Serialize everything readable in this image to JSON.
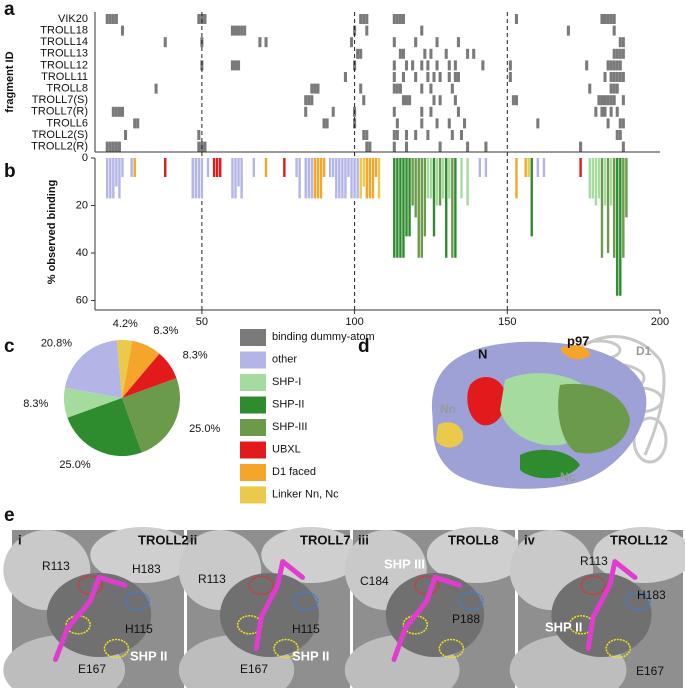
{
  "chart_data": [
    {
      "type": "raster",
      "label": "a",
      "ylabel": "fragment ID",
      "xlim": [
        15,
        200
      ],
      "reference_lines": [
        50,
        100,
        150
      ],
      "color": "#7a7a7a",
      "legend_name": "binding dummy-atom",
      "rows": [
        {
          "name": "VIK20",
          "residues": [
            19,
            20,
            21,
            22,
            49,
            50,
            51,
            102,
            103,
            104,
            113,
            114,
            115,
            116,
            153,
            181,
            182,
            183,
            184,
            185
          ]
        },
        {
          "name": "TROLL18",
          "residues": [
            24,
            60,
            61,
            62,
            63,
            64,
            100,
            104,
            122,
            170,
            185
          ]
        },
        {
          "name": "TROLL14",
          "residues": [
            38,
            50,
            69,
            71,
            99,
            113,
            120,
            127,
            134,
            187,
            188
          ]
        },
        {
          "name": "TROLL13",
          "residues": [
            101,
            102,
            115,
            116,
            123,
            125,
            130,
            137,
            139,
            185,
            186,
            187,
            188
          ]
        },
        {
          "name": "TROLL12",
          "residues": [
            50,
            60,
            61,
            62,
            100,
            113,
            117,
            119,
            122,
            124,
            127,
            131,
            133,
            142,
            151,
            176,
            183,
            184,
            185,
            186,
            187
          ]
        },
        {
          "name": "TROLL11",
          "residues": [
            97,
            113,
            116,
            120,
            124,
            126,
            128,
            131,
            133,
            134,
            151,
            182,
            184,
            185,
            186,
            187,
            188
          ]
        },
        {
          "name": "TROLL8",
          "residues": [
            35,
            86,
            87,
            88,
            102,
            113,
            114,
            115,
            122,
            125,
            132,
            177,
            184,
            185,
            186
          ]
        },
        {
          "name": "TROLL7(S)",
          "residues": [
            84,
            85,
            86,
            103,
            116,
            117,
            118,
            126,
            128,
            133,
            152,
            153,
            180,
            181,
            182,
            183,
            184,
            185,
            188
          ]
        },
        {
          "name": "TROLL7(R)",
          "residues": [
            21,
            22,
            23,
            24,
            84,
            93,
            100,
            113,
            122,
            125,
            134,
            179,
            181,
            182,
            184,
            186
          ]
        },
        {
          "name": "TROLL6",
          "residues": [
            28,
            29,
            90,
            91,
            100,
            114,
            122,
            127,
            131,
            136,
            160,
            183,
            187,
            188
          ]
        },
        {
          "name": "TROLL2(S)",
          "residues": [
            25,
            49,
            103,
            104,
            113,
            114,
            117,
            120,
            124,
            132,
            135,
            186,
            187
          ]
        },
        {
          "name": "TROLL2(R)",
          "residues": [
            19,
            20,
            21,
            22,
            23,
            49,
            50,
            51,
            104,
            105,
            113,
            117,
            128,
            137,
            143,
            174,
            188
          ]
        }
      ]
    },
    {
      "type": "bar",
      "label": "b",
      "ylabel": "% observed binding",
      "xlim": [
        15,
        200
      ],
      "xticks": [
        50,
        100,
        150,
        200
      ],
      "ylim": [
        0,
        64
      ],
      "yticks": [
        0,
        20,
        40,
        60
      ],
      "y_inverted": true,
      "series": [
        {
          "name": "other",
          "color": "#b3b5e6",
          "x": [
            19,
            20,
            21,
            22,
            23,
            24,
            27,
            47,
            48,
            49,
            50,
            52,
            60,
            61,
            62,
            63,
            67,
            81,
            82,
            84,
            85,
            86,
            90,
            92,
            93,
            94,
            95,
            96,
            97,
            98,
            99,
            100,
            101,
            141,
            143,
            160,
            162
          ],
          "values": [
            17,
            17,
            17,
            12,
            17,
            8,
            8,
            17,
            17,
            17,
            17,
            8,
            17,
            17,
            12,
            17,
            8,
            8,
            17,
            17,
            17,
            17,
            8,
            8,
            8,
            17,
            17,
            17,
            17,
            8,
            17,
            17,
            17,
            8,
            8,
            8,
            8
          ]
        },
        {
          "name": "SHP-I",
          "color": "#a6dba0",
          "x": [
            124,
            125,
            127,
            129,
            131,
            135,
            137,
            177,
            178,
            179,
            180,
            182,
            184
          ],
          "values": [
            17,
            17,
            20,
            17,
            17,
            17,
            20,
            17,
            17,
            20,
            17,
            20,
            20
          ]
        },
        {
          "name": "SHP-II",
          "color": "#2e8b2e",
          "x": [
            113,
            114,
            115,
            116,
            117,
            118,
            126,
            130,
            133,
            158,
            186,
            187
          ],
          "values": [
            42,
            42,
            42,
            42,
            33,
            33,
            33,
            42,
            42,
            33,
            58,
            58
          ]
        },
        {
          "name": "SHP-III",
          "color": "#6a9a4a",
          "x": [
            119,
            120,
            121,
            122,
            123,
            128,
            132,
            181,
            183,
            185,
            188,
            189
          ],
          "values": [
            20,
            25,
            42,
            42,
            33,
            20,
            42,
            42,
            40,
            42,
            42,
            25
          ]
        },
        {
          "name": "UBXL",
          "color": "#e31a1c",
          "x": [
            38,
            54,
            55,
            56,
            77,
            174
          ],
          "values": [
            8,
            8,
            8,
            8,
            8,
            8
          ]
        },
        {
          "name": "D1 faced",
          "color": "#f4a52a",
          "x": [
            28,
            71,
            87,
            88,
            89,
            90,
            104,
            105,
            106,
            107,
            153,
            156
          ],
          "values": [
            8,
            8,
            17,
            17,
            17,
            8,
            17,
            17,
            17,
            8,
            17,
            8
          ]
        },
        {
          "name": "Linker Nn, Nc",
          "color": "#ebc94a",
          "x": [
            102,
            103,
            108,
            157
          ],
          "values": [
            17,
            12,
            17,
            8
          ]
        }
      ]
    },
    {
      "type": "pie",
      "label": "c",
      "start_angle": -5,
      "direction": "counterclockwise",
      "categories": [
        "other",
        "SHP-I",
        "SHP-II",
        "SHP-III",
        "UBXL",
        "D1 faced",
        "Linker Nn, Nc"
      ],
      "colors": [
        "#b3b5e6",
        "#a6dba0",
        "#2e8b2e",
        "#6a9a4a",
        "#e31a1c",
        "#f4a52a",
        "#ebc94a"
      ],
      "values": [
        20.8,
        8.3,
        25.0,
        25.0,
        8.3,
        8.3,
        4.2
      ],
      "value_labels": [
        "20.8%",
        "8.3%",
        "25.0%",
        "25.0%",
        "8.3%",
        "8.3%",
        "4.2%"
      ]
    }
  ],
  "panel_d": {
    "label": "d",
    "annotations": [
      "N",
      "p97",
      "D1",
      "Nn",
      "Nc"
    ]
  },
  "panel_e": {
    "label": "e",
    "images": [
      {
        "numeral": "i",
        "title": "TROLL2",
        "labels": [
          "R113",
          "H183",
          "H115",
          "E167",
          "SHP II"
        ]
      },
      {
        "numeral": "ii",
        "title": "TROLL7",
        "labels": [
          "R113",
          "H115",
          "E167",
          "SHP II"
        ]
      },
      {
        "numeral": "iii",
        "title": "TROLL8",
        "labels": [
          "SHP III",
          "C184",
          "P188"
        ]
      },
      {
        "numeral": "iv",
        "title": "TROLL12",
        "labels": [
          "R113",
          "H183",
          "SHP II",
          "E167"
        ]
      }
    ]
  }
}
